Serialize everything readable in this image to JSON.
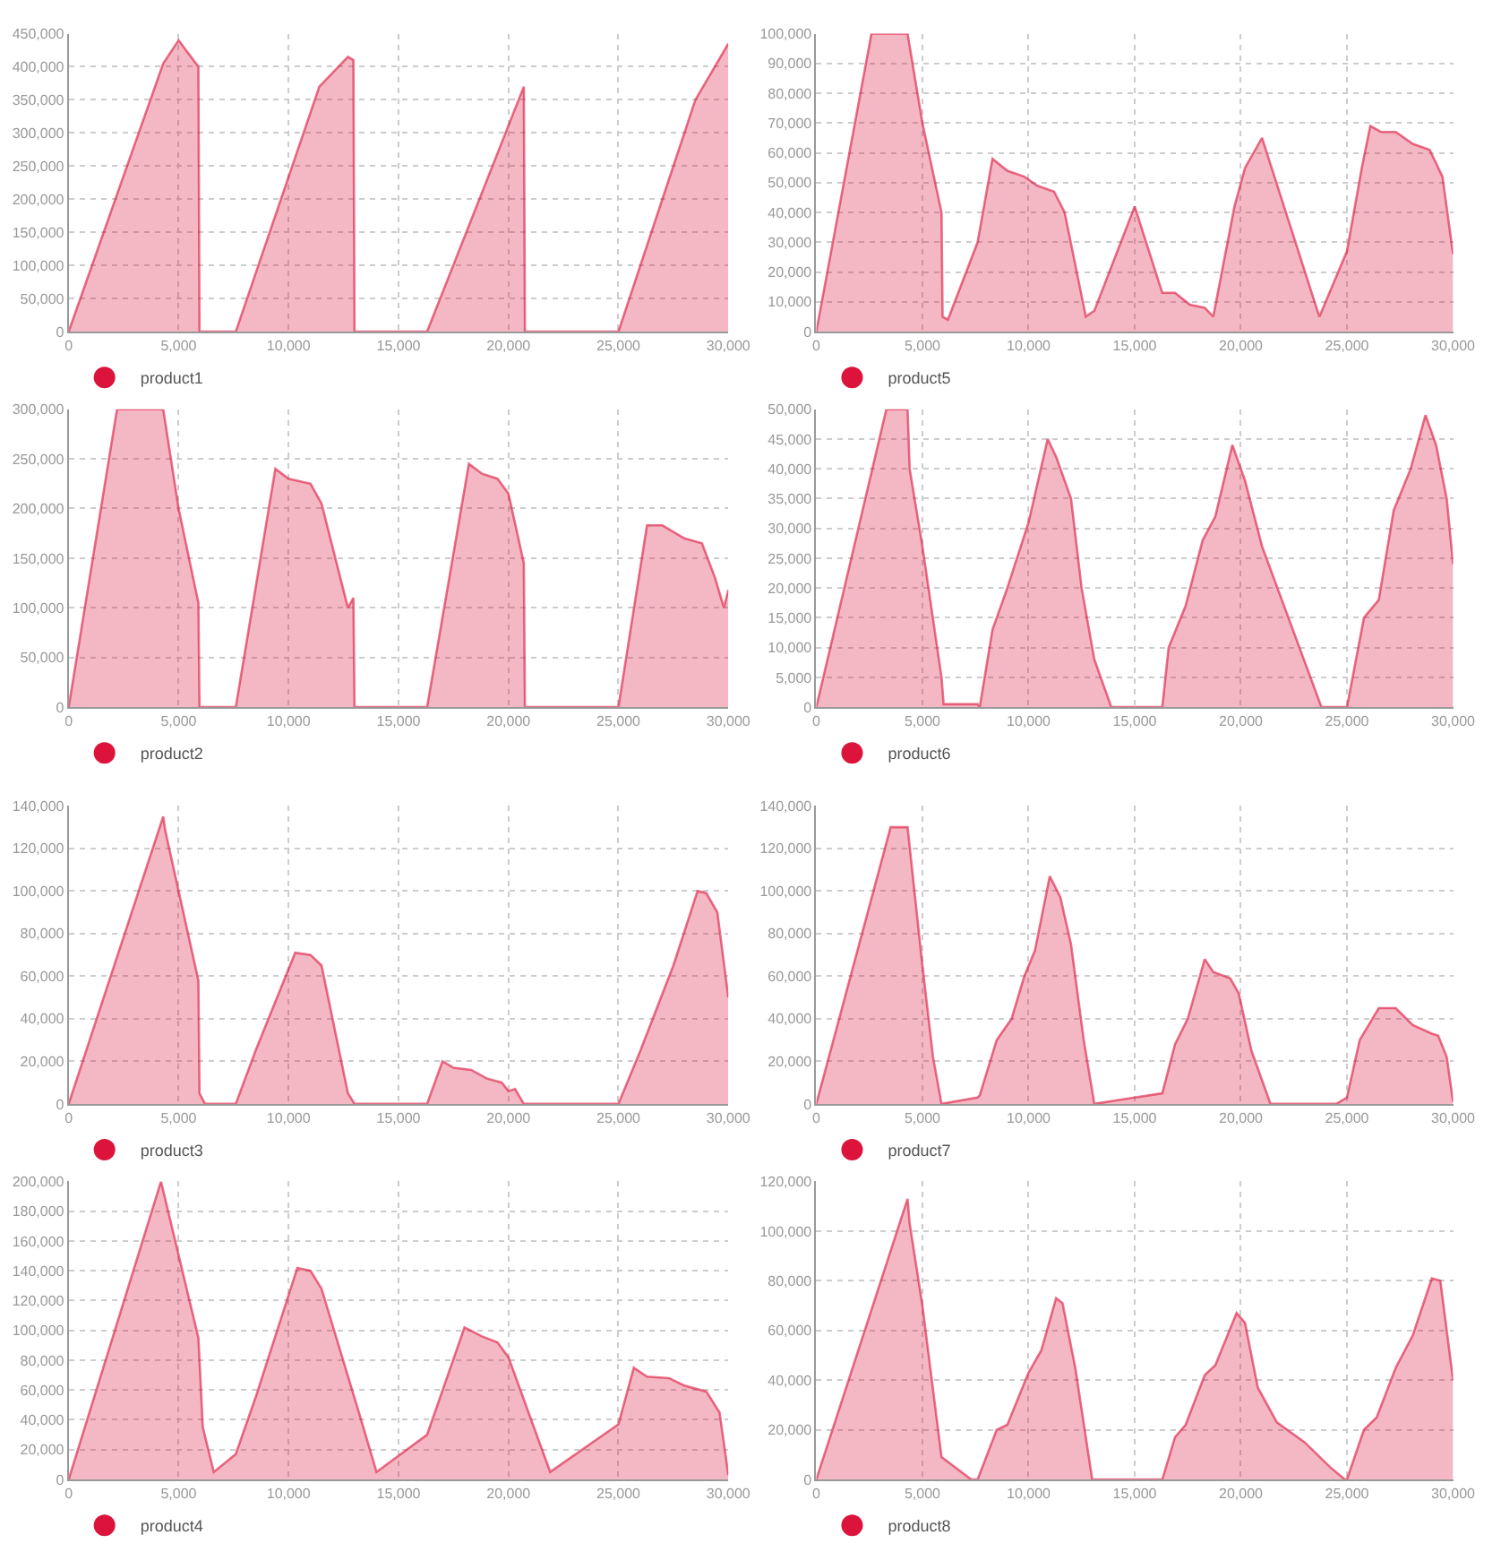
{
  "chart_data": [
    {
      "type": "area",
      "x": [
        0,
        4300,
        5000,
        5900,
        5950,
        7600,
        11400,
        12700,
        12950,
        13000,
        16300,
        20700,
        20750,
        25000,
        28500,
        30000
      ],
      "series": [
        {
          "name": "product1",
          "color": "#dc143c",
          "values": [
            0,
            405000,
            440000,
            400000,
            0,
            0,
            370000,
            415000,
            410000,
            0,
            0,
            370000,
            0,
            0,
            350000,
            435000
          ]
        }
      ],
      "xlim": [
        0,
        30000
      ],
      "xticks": [
        0,
        {
          "value": 5000,
          "label": "5,000"
        },
        {
          "value": 10000,
          "label": "10,000"
        },
        {
          "value": 15000,
          "label": "15,000"
        },
        {
          "value": 20000,
          "label": "20,000"
        },
        {
          "value": 25000,
          "label": "25,000"
        },
        {
          "value": 30000,
          "label": "30,000"
        }
      ],
      "ylim": [
        0,
        450000
      ],
      "yticks": [
        0,
        {
          "value": 50000,
          "label": "50,000"
        },
        {
          "value": 100000,
          "label": "100,000"
        },
        {
          "value": 150000,
          "label": "150,000"
        },
        {
          "value": 200000,
          "label": "200,000"
        },
        {
          "value": 250000,
          "label": "250,000"
        },
        {
          "value": 300000,
          "label": "300,000"
        },
        {
          "value": 350000,
          "label": "350,000"
        },
        {
          "value": 400000,
          "label": "400,000"
        },
        {
          "value": 450000,
          "label": "450,000"
        }
      ],
      "grid": true,
      "legend": "bottom left"
    },
    {
      "type": "area",
      "x": [
        0,
        2600,
        4300,
        5000,
        5900,
        5950,
        6200,
        7600,
        8300,
        9000,
        9800,
        10400,
        11200,
        11700,
        12700,
        13100,
        15000,
        16300,
        16900,
        17600,
        18300,
        18700,
        19700,
        20200,
        21000,
        23700,
        25000,
        25700,
        26100,
        26600,
        27300,
        28100,
        28900,
        29500,
        30000
      ],
      "series": [
        {
          "name": "product5",
          "color": "#dc143c",
          "values": [
            0,
            100000,
            100000,
            70000,
            40000,
            5000,
            4000,
            30000,
            58000,
            54000,
            52000,
            49000,
            47000,
            40000,
            5000,
            7000,
            42000,
            13000,
            13000,
            9000,
            8000,
            5000,
            42000,
            55000,
            65000,
            5000,
            27000,
            55000,
            69000,
            67000,
            67000,
            63000,
            61000,
            52000,
            26000
          ]
        }
      ],
      "xlim": [
        0,
        30000
      ],
      "xticks": [
        0,
        {
          "value": 5000,
          "label": "5,000"
        },
        {
          "value": 10000,
          "label": "10,000"
        },
        {
          "value": 15000,
          "label": "15,000"
        },
        {
          "value": 20000,
          "label": "20,000"
        },
        {
          "value": 25000,
          "label": "25,000"
        },
        {
          "value": 30000,
          "label": "30,000"
        }
      ],
      "ylim": [
        0,
        100000
      ],
      "yticks": [
        0,
        {
          "value": 10000,
          "label": "10,000"
        },
        {
          "value": 20000,
          "label": "20,000"
        },
        {
          "value": 30000,
          "label": "30,000"
        },
        {
          "value": 40000,
          "label": "40,000"
        },
        {
          "value": 50000,
          "label": "50,000"
        },
        {
          "value": 60000,
          "label": "60,000"
        },
        {
          "value": 70000,
          "label": "70,000"
        },
        {
          "value": 80000,
          "label": "80,000"
        },
        {
          "value": 90000,
          "label": "90,000"
        },
        {
          "value": 100000,
          "label": "100,000"
        }
      ],
      "grid": true,
      "legend": "bottom left"
    },
    {
      "type": "area",
      "x": [
        0,
        2200,
        4300,
        5000,
        5900,
        5950,
        7600,
        9400,
        10000,
        11000,
        11500,
        12700,
        12950,
        13000,
        16300,
        18200,
        18800,
        19500,
        20000,
        20700,
        20750,
        25000,
        26300,
        27000,
        28000,
        28800,
        29400,
        29800,
        30000
      ],
      "series": [
        {
          "name": "product2",
          "color": "#dc143c",
          "values": [
            0,
            300000,
            300000,
            200000,
            105000,
            0,
            0,
            240000,
            230000,
            225000,
            205000,
            100000,
            110000,
            0,
            0,
            245000,
            235000,
            230000,
            215000,
            145000,
            0,
            0,
            183000,
            183000,
            170000,
            165000,
            130000,
            100000,
            118000
          ]
        }
      ],
      "xlim": [
        0,
        30000
      ],
      "xticks": [
        0,
        {
          "value": 5000,
          "label": "5,000"
        },
        {
          "value": 10000,
          "label": "10,000"
        },
        {
          "value": 15000,
          "label": "15,000"
        },
        {
          "value": 20000,
          "label": "20,000"
        },
        {
          "value": 25000,
          "label": "25,000"
        },
        {
          "value": 30000,
          "label": "30,000"
        }
      ],
      "ylim": [
        0,
        300000
      ],
      "yticks": [
        0,
        {
          "value": 50000,
          "label": "50,000"
        },
        {
          "value": 100000,
          "label": "100,000"
        },
        {
          "value": 150000,
          "label": "150,000"
        },
        {
          "value": 200000,
          "label": "200,000"
        },
        {
          "value": 250000,
          "label": "250,000"
        },
        {
          "value": 300000,
          "label": "300,000"
        }
      ],
      "grid": true,
      "legend": "bottom left"
    },
    {
      "type": "area",
      "x": [
        0,
        3300,
        4300,
        4400,
        5000,
        5900,
        6000,
        7600,
        7700,
        8300,
        9000,
        10000,
        10900,
        11300,
        12000,
        12500,
        13100,
        13900,
        16300,
        16600,
        17400,
        18200,
        18800,
        19600,
        20200,
        21000,
        23800,
        25000,
        25800,
        26500,
        27200,
        28000,
        28700,
        29200,
        29700,
        30000
      ],
      "series": [
        {
          "name": "product6",
          "color": "#dc143c",
          "values": [
            0,
            50000,
            50000,
            40000,
            27000,
            5000,
            500,
            500,
            0,
            13000,
            20000,
            31000,
            45000,
            42000,
            35000,
            20000,
            8000,
            0,
            0,
            10000,
            17000,
            28000,
            32000,
            44000,
            38000,
            27000,
            0,
            0,
            15000,
            18000,
            33000,
            40000,
            49000,
            44000,
            35000,
            24000
          ]
        }
      ],
      "xlim": [
        0,
        30000
      ],
      "xticks": [
        0,
        {
          "value": 5000,
          "label": "5,000"
        },
        {
          "value": 10000,
          "label": "10,000"
        },
        {
          "value": 15000,
          "label": "15,000"
        },
        {
          "value": 20000,
          "label": "20,000"
        },
        {
          "value": 25000,
          "label": "25,000"
        },
        {
          "value": 30000,
          "label": "30,000"
        }
      ],
      "ylim": [
        0,
        50000
      ],
      "yticks": [
        0,
        {
          "value": 5000,
          "label": "5,000"
        },
        {
          "value": 10000,
          "label": "10,000"
        },
        {
          "value": 15000,
          "label": "15,000"
        },
        {
          "value": 20000,
          "label": "20,000"
        },
        {
          "value": 25000,
          "label": "25,000"
        },
        {
          "value": 30000,
          "label": "30,000"
        },
        {
          "value": 35000,
          "label": "35,000"
        },
        {
          "value": 40000,
          "label": "40,000"
        },
        {
          "value": 45000,
          "label": "45,000"
        },
        {
          "value": 50000,
          "label": "50,000"
        }
      ],
      "grid": true,
      "legend": "bottom left"
    },
    {
      "type": "area",
      "x": [
        0,
        4300,
        4400,
        5900,
        5950,
        6200,
        7600,
        8500,
        10300,
        11000,
        11500,
        12700,
        13000,
        16300,
        17000,
        17500,
        18300,
        19000,
        19700,
        20000,
        20300,
        20700,
        25000,
        26000,
        27500,
        28600,
        29000,
        29500,
        30000
      ],
      "series": [
        {
          "name": "product3",
          "color": "#dc143c",
          "values": [
            0,
            135000,
            128000,
            58000,
            5000,
            0,
            0,
            25000,
            71000,
            70000,
            65000,
            5000,
            0,
            0,
            20000,
            17000,
            16000,
            12000,
            10000,
            6000,
            7000,
            0,
            0,
            25000,
            65000,
            100000,
            99000,
            90000,
            50000
          ]
        }
      ],
      "xlim": [
        0,
        30000
      ],
      "xticks": [
        0,
        {
          "value": 5000,
          "label": "5,000"
        },
        {
          "value": 10000,
          "label": "10,000"
        },
        {
          "value": 15000,
          "label": "15,000"
        },
        {
          "value": 20000,
          "label": "20,000"
        },
        {
          "value": 25000,
          "label": "25,000"
        },
        {
          "value": 30000,
          "label": "30,000"
        }
      ],
      "ylim": [
        0,
        140000
      ],
      "yticks": [
        0,
        {
          "value": 20000,
          "label": "20,000"
        },
        {
          "value": 40000,
          "label": "40,000"
        },
        {
          "value": 60000,
          "label": "60,000"
        },
        {
          "value": 80000,
          "label": "80,000"
        },
        {
          "value": 100000,
          "label": "100,000"
        },
        {
          "value": 120000,
          "label": "120,000"
        },
        {
          "value": 140000,
          "label": "140,000"
        }
      ],
      "grid": true,
      "legend": "bottom left"
    },
    {
      "type": "area",
      "x": [
        0,
        3500,
        4300,
        5000,
        5500,
        5900,
        7600,
        7700,
        8500,
        9200,
        9800,
        10300,
        11000,
        11500,
        12000,
        12600,
        13100,
        16300,
        16900,
        17500,
        18300,
        18700,
        19500,
        19900,
        20500,
        21400,
        24500,
        25000,
        25600,
        26500,
        27300,
        28100,
        29000,
        29300,
        29700,
        30000
      ],
      "series": [
        {
          "name": "product7",
          "color": "#dc143c",
          "values": [
            0,
            130000,
            130000,
            65000,
            22000,
            0,
            3000,
            4000,
            30000,
            40000,
            60000,
            72000,
            107000,
            97000,
            75000,
            30000,
            0,
            5000,
            28000,
            40000,
            68000,
            62000,
            59000,
            52000,
            25000,
            0,
            0,
            3000,
            30000,
            45000,
            45000,
            37000,
            33000,
            32000,
            22000,
            1000
          ]
        }
      ],
      "xlim": [
        0,
        30000
      ],
      "xticks": [
        0,
        {
          "value": 5000,
          "label": "5,000"
        },
        {
          "value": 10000,
          "label": "10,000"
        },
        {
          "value": 15000,
          "label": "15,000"
        },
        {
          "value": 20000,
          "label": "20,000"
        },
        {
          "value": 25000,
          "label": "25,000"
        },
        {
          "value": 30000,
          "label": "30,000"
        }
      ],
      "ylim": [
        0,
        140000
      ],
      "yticks": [
        0,
        {
          "value": 20000,
          "label": "20,000"
        },
        {
          "value": 40000,
          "label": "40,000"
        },
        {
          "value": 60000,
          "label": "60,000"
        },
        {
          "value": 80000,
          "label": "80,000"
        },
        {
          "value": 100000,
          "label": "100,000"
        },
        {
          "value": 120000,
          "label": "120,000"
        },
        {
          "value": 140000,
          "label": "140,000"
        }
      ],
      "grid": true,
      "legend": "bottom left"
    },
    {
      "type": "area",
      "x": [
        0,
        4200,
        5900,
        6100,
        6600,
        7600,
        8500,
        10400,
        11000,
        11500,
        13300,
        14000,
        16300,
        18000,
        18800,
        19500,
        20000,
        21900,
        25000,
        25700,
        26300,
        27300,
        28000,
        29000,
        29600,
        30000
      ],
      "series": [
        {
          "name": "product4",
          "color": "#dc143c",
          "values": [
            0,
            200000,
            95000,
            35000,
            5000,
            17000,
            55000,
            142000,
            140000,
            128000,
            40000,
            5000,
            30000,
            102000,
            96000,
            92000,
            82000,
            5000,
            37000,
            75000,
            69000,
            68000,
            63000,
            59000,
            45000,
            3000
          ]
        }
      ],
      "xlim": [
        0,
        30000
      ],
      "xticks": [
        0,
        {
          "value": 5000,
          "label": "5,000"
        },
        {
          "value": 10000,
          "label": "10,000"
        },
        {
          "value": 15000,
          "label": "15,000"
        },
        {
          "value": 20000,
          "label": "20,000"
        },
        {
          "value": 25000,
          "label": "25,000"
        },
        {
          "value": 30000,
          "label": "30,000"
        }
      ],
      "ylim": [
        0,
        200000
      ],
      "yticks": [
        0,
        {
          "value": 20000,
          "label": "20,000"
        },
        {
          "value": 40000,
          "label": "40,000"
        },
        {
          "value": 60000,
          "label": "60,000"
        },
        {
          "value": 80000,
          "label": "80,000"
        },
        {
          "value": 100000,
          "label": "100,000"
        },
        {
          "value": 120000,
          "label": "120,000"
        },
        {
          "value": 140000,
          "label": "140,000"
        },
        {
          "value": 160000,
          "label": "160,000"
        },
        {
          "value": 180000,
          "label": "180,000"
        },
        {
          "value": 200000,
          "label": "200,000"
        }
      ],
      "grid": true,
      "legend": "bottom left"
    },
    {
      "type": "area",
      "x": [
        0,
        4300,
        4400,
        5000,
        5900,
        7300,
        7600,
        8500,
        9000,
        10000,
        10600,
        11300,
        11600,
        12200,
        13000,
        16300,
        16900,
        17400,
        18300,
        18800,
        19800,
        20200,
        20800,
        21700,
        23000,
        24200,
        24900,
        25000,
        25800,
        26400,
        27300,
        28100,
        29000,
        29400,
        30000
      ],
      "series": [
        {
          "name": "product8",
          "color": "#dc143c",
          "values": [
            0,
            113000,
            103000,
            70000,
            9000,
            0,
            0,
            20000,
            22000,
            43000,
            52000,
            73000,
            71000,
            45000,
            0,
            0,
            17000,
            22000,
            42000,
            46000,
            67000,
            63000,
            37000,
            23000,
            15000,
            5000,
            0,
            0,
            20000,
            25000,
            45000,
            58000,
            81000,
            80000,
            40000
          ]
        }
      ],
      "xlim": [
        0,
        30000
      ],
      "xticks": [
        0,
        {
          "value": 5000,
          "label": "5,000"
        },
        {
          "value": 10000,
          "label": "10,000"
        },
        {
          "value": 15000,
          "label": "15,000"
        },
        {
          "value": 20000,
          "label": "20,000"
        },
        {
          "value": 25000,
          "label": "25,000"
        },
        {
          "value": 30000,
          "label": "30,000"
        }
      ],
      "ylim": [
        0,
        120000
      ],
      "yticks": [
        0,
        {
          "value": 20000,
          "label": "20,000"
        },
        {
          "value": 40000,
          "label": "40,000"
        },
        {
          "value": 60000,
          "label": "60,000"
        },
        {
          "value": 80000,
          "label": "80,000"
        },
        {
          "value": 100000,
          "label": "100,000"
        },
        {
          "value": 120000,
          "label": "120,000"
        }
      ],
      "grid": true,
      "legend": "bottom left"
    }
  ]
}
